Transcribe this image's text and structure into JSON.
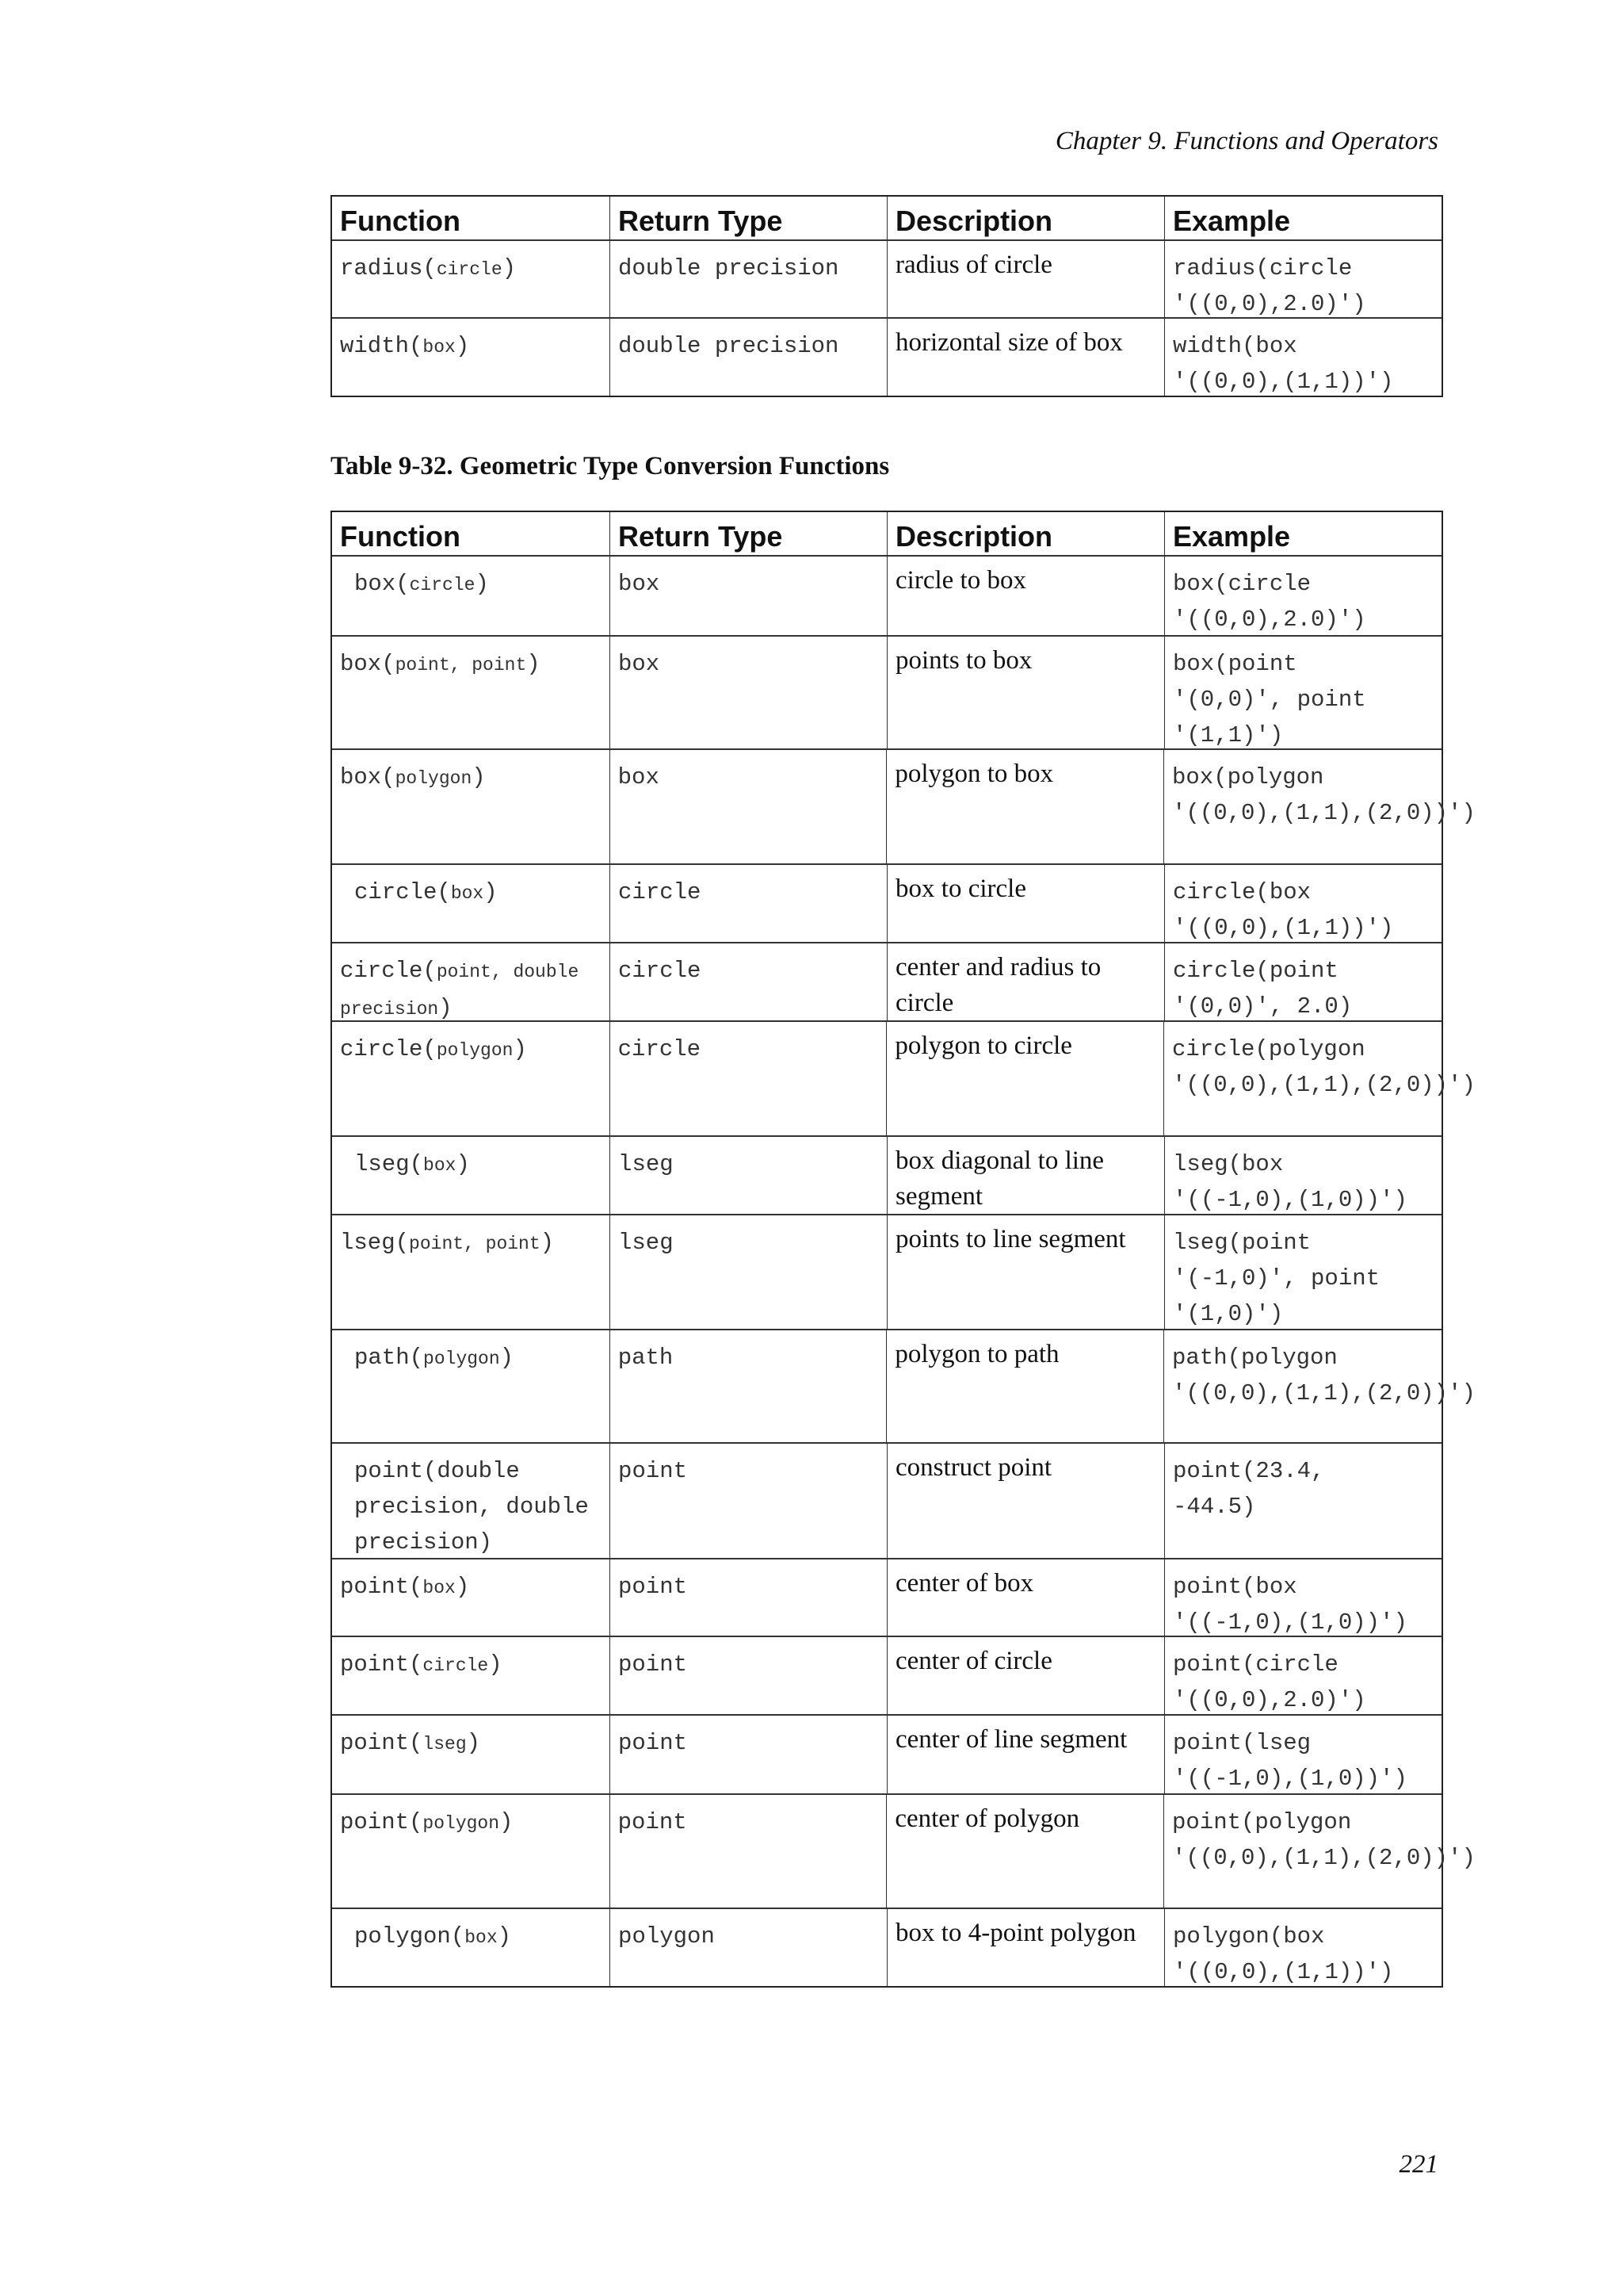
{
  "running_head": "Chapter 9. Functions and Operators",
  "page_number": "221",
  "headers": [
    "Function",
    "Return Type",
    "Description",
    "Example"
  ],
  "table1": {
    "rows": [
      {
        "fn": "radius",
        "args": "circle",
        "small": true,
        "indent": false,
        "ret": "double precision",
        "desc": "radius of circle",
        "ex": "radius(circle\n'((0,0),2.0)')"
      },
      {
        "fn": "width",
        "args": "box",
        "small": true,
        "indent": false,
        "ret": "double precision",
        "desc": "horizontal size of box",
        "ex": "width(box\n'((0,0),(1,1))')"
      }
    ]
  },
  "table2": {
    "caption": "Table 9-32. Geometric Type Conversion Functions",
    "rows": [
      {
        "fn": "box",
        "args": "circle",
        "small": true,
        "indent": true,
        "ret": "box",
        "desc": "circle to box",
        "ex": "box(circle\n'((0,0),2.0)')"
      },
      {
        "fn": "box",
        "args": "point, point",
        "small": true,
        "indent": false,
        "ret": "box",
        "desc": "points to box",
        "ex": "box(point\n'(0,0)', point\n'(1,1)')"
      },
      {
        "fn": "box",
        "args": "polygon",
        "small": true,
        "indent": false,
        "ret": "box",
        "desc": "polygon to box",
        "ex": "box(polygon\n'((0,0),(1,1),(2,0))')"
      },
      {
        "fn": "circle",
        "args": "box",
        "small": true,
        "indent": true,
        "ret": "circle",
        "desc": "box to circle",
        "ex": "circle(box\n'((0,0),(1,1))')"
      },
      {
        "fn": "circle",
        "args": "point, double\nprecision",
        "small": true,
        "indent": false,
        "ret": "circle",
        "desc": "center and radius to circle",
        "ex": "circle(point\n'(0,0)', 2.0)"
      },
      {
        "fn": "circle",
        "args": "polygon",
        "small": true,
        "indent": false,
        "ret": "circle",
        "desc": "polygon to circle",
        "ex": "circle(polygon\n'((0,0),(1,1),(2,0))')"
      },
      {
        "fn": "lseg",
        "args": "box",
        "small": true,
        "indent": true,
        "ret": "lseg",
        "desc": "box diagonal to line segment",
        "ex": "lseg(box\n'((-1,0),(1,0))')"
      },
      {
        "fn": "lseg",
        "args": "point, point",
        "small": true,
        "indent": false,
        "ret": "lseg",
        "desc": "points to line segment",
        "ex": "lseg(point\n'(-1,0)', point\n'(1,0)')"
      },
      {
        "fn": "path",
        "args": "polygon",
        "small": true,
        "indent": true,
        "ret": "path",
        "desc": "polygon to path",
        "ex": "path(polygon\n'((0,0),(1,1),(2,0))')"
      },
      {
        "fn": "point",
        "args": "double\nprecision, double\nprecision",
        "small": false,
        "indent": true,
        "ret": "point",
        "desc": "construct point",
        "ex": "point(23.4,\n-44.5)"
      },
      {
        "fn": "point",
        "args": "box",
        "small": true,
        "indent": false,
        "ret": "point",
        "desc": "center of box",
        "ex": "point(box\n'((-1,0),(1,0))')"
      },
      {
        "fn": "point",
        "args": "circle",
        "small": true,
        "indent": false,
        "ret": "point",
        "desc": "center of circle",
        "ex": "point(circle\n'((0,0),2.0)')"
      },
      {
        "fn": "point",
        "args": "lseg",
        "small": true,
        "indent": false,
        "ret": "point",
        "desc": "center of line segment",
        "ex": "point(lseg\n'((-1,0),(1,0))')"
      },
      {
        "fn": "point",
        "args": "polygon",
        "small": true,
        "indent": false,
        "ret": "point",
        "desc": "center of polygon",
        "ex": "point(polygon\n'((0,0),(1,1),(2,0))')"
      },
      {
        "fn": "polygon",
        "args": "box",
        "small": true,
        "indent": true,
        "ret": "polygon",
        "desc": "box to 4-point polygon",
        "ex": "polygon(box\n'((0,0),(1,1))')"
      }
    ]
  }
}
